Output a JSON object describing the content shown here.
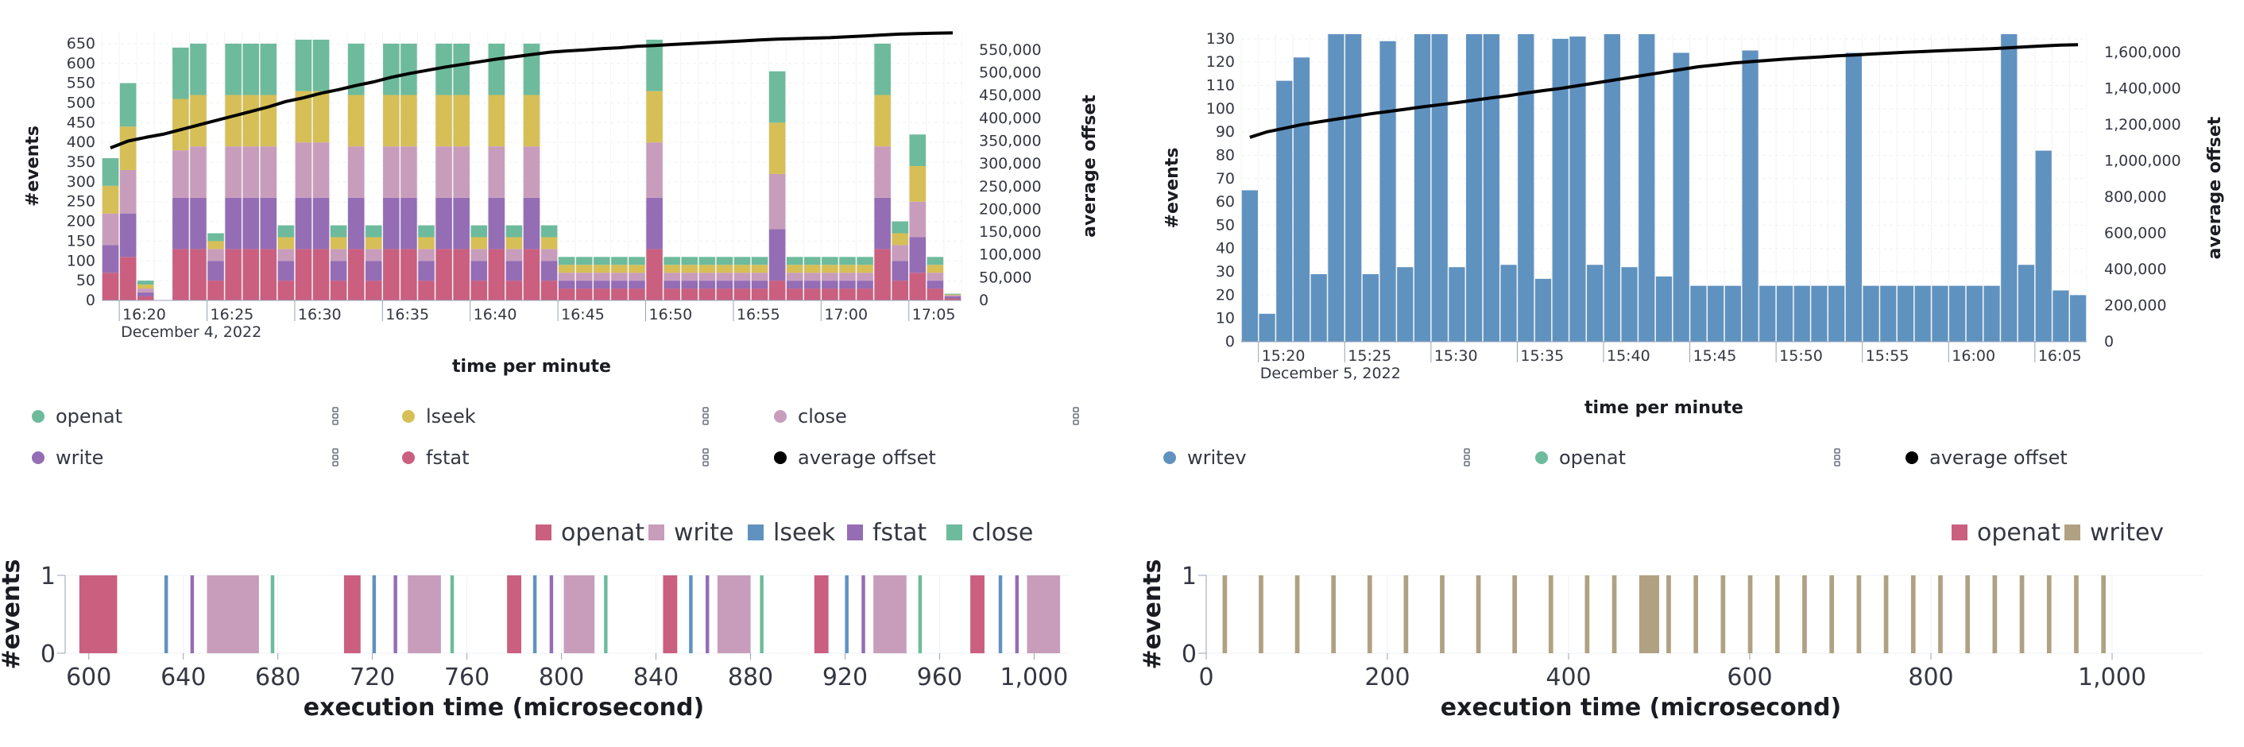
{
  "chart_data": [
    {
      "type": "bar",
      "stacked": true,
      "categories": [
        "16:19",
        "16:20",
        "16:21",
        "16:22",
        "16:23",
        "16:24",
        "16:25",
        "16:26",
        "16:27",
        "16:28",
        "16:29",
        "16:30",
        "16:31",
        "16:32",
        "16:33",
        "16:34",
        "16:35",
        "16:36",
        "16:37",
        "16:38",
        "16:39",
        "16:40",
        "16:41",
        "16:42",
        "16:43",
        "16:44",
        "16:45",
        "16:46",
        "16:47",
        "16:48",
        "16:49",
        "16:50",
        "16:51",
        "16:52",
        "16:53",
        "16:54",
        "16:55",
        "16:56",
        "16:57",
        "16:58",
        "16:59",
        "17:00",
        "17:01",
        "17:02",
        "17:03",
        "17:04",
        "17:05",
        "17:06",
        "17:07"
      ],
      "x_tick_labels": [
        "16:20",
        "16:25",
        "16:30",
        "16:35",
        "16:40",
        "16:45",
        "16:50",
        "16:55",
        "17:00",
        "17:05"
      ],
      "date_label": "December 4, 2022",
      "xlabel": "time per minute",
      "ylabel": "#events",
      "y2label": "average offset",
      "ylim": [
        0,
        680
      ],
      "yticks": [
        0,
        50,
        100,
        150,
        200,
        250,
        300,
        350,
        400,
        450,
        500,
        550,
        600,
        650
      ],
      "y2lim": [
        0,
        590000
      ],
      "y2ticks": [
        "0",
        "50,000",
        "100,000",
        "150,000",
        "200,000",
        "250,000",
        "300,000",
        "350,000",
        "400,000",
        "450,000",
        "500,000",
        "550,000"
      ],
      "series": [
        {
          "name": "fstat",
          "color": "#ca5f80",
          "values": [
            70,
            110,
            10,
            0,
            130,
            130,
            50,
            130,
            130,
            130,
            50,
            130,
            130,
            50,
            130,
            50,
            130,
            130,
            50,
            130,
            130,
            50,
            130,
            50,
            130,
            50,
            30,
            30,
            30,
            30,
            30,
            130,
            30,
            30,
            30,
            30,
            30,
            30,
            50,
            30,
            30,
            30,
            30,
            30,
            130,
            50,
            70,
            30,
            5
          ]
        },
        {
          "name": "write",
          "color": "#946db5",
          "values": [
            70,
            110,
            10,
            0,
            130,
            130,
            50,
            130,
            130,
            130,
            50,
            130,
            130,
            50,
            130,
            50,
            130,
            130,
            50,
            130,
            130,
            50,
            130,
            50,
            130,
            50,
            20,
            20,
            20,
            20,
            20,
            130,
            20,
            20,
            20,
            20,
            20,
            20,
            130,
            20,
            20,
            20,
            20,
            20,
            130,
            50,
            90,
            20,
            5
          ]
        },
        {
          "name": "close",
          "color": "#c89dbb",
          "values": [
            80,
            110,
            10,
            0,
            120,
            130,
            30,
            130,
            130,
            130,
            30,
            140,
            140,
            30,
            130,
            30,
            130,
            130,
            30,
            130,
            130,
            30,
            130,
            30,
            130,
            30,
            20,
            20,
            20,
            20,
            20,
            140,
            20,
            20,
            20,
            20,
            20,
            20,
            140,
            20,
            20,
            20,
            20,
            20,
            130,
            40,
            90,
            20,
            3
          ]
        },
        {
          "name": "lseek",
          "color": "#d6bf57",
          "values": [
            70,
            110,
            10,
            0,
            130,
            130,
            20,
            130,
            130,
            130,
            30,
            130,
            130,
            30,
            130,
            30,
            130,
            130,
            30,
            130,
            130,
            30,
            130,
            30,
            130,
            30,
            20,
            20,
            20,
            20,
            20,
            130,
            20,
            20,
            20,
            20,
            20,
            20,
            130,
            20,
            20,
            20,
            20,
            20,
            130,
            30,
            90,
            20,
            2
          ]
        },
        {
          "name": "openat",
          "color": "#6dbb9c",
          "values": [
            70,
            110,
            10,
            0,
            130,
            130,
            20,
            130,
            130,
            130,
            30,
            130,
            130,
            30,
            130,
            30,
            130,
            130,
            30,
            130,
            130,
            30,
            130,
            30,
            130,
            30,
            20,
            20,
            20,
            20,
            20,
            130,
            20,
            20,
            20,
            20,
            20,
            20,
            130,
            20,
            20,
            20,
            20,
            20,
            130,
            30,
            80,
            20,
            2
          ]
        }
      ],
      "line": {
        "name": "average offset",
        "color": "#000000",
        "values": [
          335000,
          350000,
          358000,
          365000,
          375000,
          385000,
          395000,
          405000,
          415000,
          425000,
          437000,
          445000,
          455000,
          463000,
          472000,
          480000,
          490000,
          498000,
          505000,
          512000,
          518000,
          524000,
          530000,
          535000,
          540000,
          545000,
          548000,
          550000,
          553000,
          555000,
          558000,
          560000,
          562000,
          564000,
          566000,
          568000,
          570000,
          572000,
          574000,
          575000,
          576000,
          577000,
          579000,
          581000,
          583000,
          585000,
          586000,
          587000,
          587500
        ]
      },
      "legend": [
        {
          "name": "openat",
          "color": "#6dbb9c"
        },
        {
          "name": "lseek",
          "color": "#d6bf57"
        },
        {
          "name": "close",
          "color": "#c89dbb"
        },
        {
          "name": "write",
          "color": "#946db5"
        },
        {
          "name": "fstat",
          "color": "#ca5f80"
        },
        {
          "name": "average offset",
          "color": "#000000"
        }
      ]
    },
    {
      "type": "bar",
      "categories": [
        "15:19",
        "15:20",
        "15:21",
        "15:22",
        "15:23",
        "15:24",
        "15:25",
        "15:26",
        "15:27",
        "15:28",
        "15:29",
        "15:30",
        "15:31",
        "15:32",
        "15:33",
        "15:34",
        "15:35",
        "15:36",
        "15:37",
        "15:38",
        "15:39",
        "15:40",
        "15:41",
        "15:42",
        "15:43",
        "15:44",
        "15:45",
        "15:46",
        "15:47",
        "15:48",
        "15:49",
        "15:50",
        "15:51",
        "15:52",
        "15:53",
        "15:54",
        "15:55",
        "15:56",
        "15:57",
        "15:58",
        "15:59",
        "16:00",
        "16:01",
        "16:02",
        "16:03",
        "16:04",
        "16:05",
        "16:06",
        "16:07"
      ],
      "x_tick_labels": [
        "15:20",
        "15:25",
        "15:30",
        "15:35",
        "15:40",
        "15:45",
        "15:50",
        "15:55",
        "16:00",
        "16:05"
      ],
      "date_label": "December 5, 2022",
      "xlabel": "time per minute",
      "ylabel": "#events",
      "y2label": "average offset",
      "ylim": [
        0,
        132
      ],
      "yticks": [
        0,
        10,
        20,
        30,
        40,
        50,
        60,
        70,
        80,
        90,
        100,
        110,
        120,
        130
      ],
      "y2lim": [
        0,
        1700000
      ],
      "y2ticks": [
        "0",
        "200,000",
        "400,000",
        "600,000",
        "800,000",
        "1,000,000",
        "1,200,000",
        "1,400,000",
        "1,600,000"
      ],
      "series": [
        {
          "name": "writev",
          "color": "#6092c0",
          "values": [
            65,
            12,
            112,
            122,
            29,
            132,
            132,
            29,
            129,
            32,
            132,
            132,
            32,
            132,
            132,
            33,
            132,
            27,
            130,
            131,
            33,
            132,
            32,
            132,
            28,
            124,
            24,
            24,
            24,
            125,
            24,
            24,
            24,
            24,
            24,
            124,
            24,
            24,
            24,
            24,
            24,
            24,
            24,
            24,
            133,
            33,
            82,
            22,
            20
          ]
        }
      ],
      "line": {
        "name": "average offset",
        "color": "#000000",
        "values": [
          1130000,
          1160000,
          1180000,
          1200000,
          1215000,
          1230000,
          1245000,
          1260000,
          1272000,
          1285000,
          1298000,
          1310000,
          1322000,
          1335000,
          1348000,
          1360000,
          1375000,
          1388000,
          1400000,
          1415000,
          1430000,
          1445000,
          1460000,
          1475000,
          1490000,
          1505000,
          1520000,
          1530000,
          1540000,
          1548000,
          1555000,
          1562000,
          1568000,
          1574000,
          1580000,
          1585000,
          1590000,
          1595000,
          1600000,
          1604000,
          1608000,
          1612000,
          1616000,
          1620000,
          1625000,
          1630000,
          1635000,
          1640000,
          1642000
        ]
      },
      "legend": [
        {
          "name": "writev",
          "color": "#6092c0"
        },
        {
          "name": "openat",
          "color": "#6dbb9c"
        },
        {
          "name": "average offset",
          "color": "#000000"
        }
      ]
    },
    {
      "type": "timeline",
      "xlabel": "execution time (microsecond)",
      "ylabel": "#events",
      "xlim": [
        590,
        1015
      ],
      "xticks": [
        600,
        640,
        680,
        720,
        760,
        800,
        840,
        880,
        920,
        960,
        1000
      ],
      "xtick_labels": [
        "600",
        "640",
        "680",
        "720",
        "760",
        "800",
        "840",
        "880",
        "920",
        "960",
        "1,000"
      ],
      "ylim": [
        0,
        1
      ],
      "yticks": [
        0,
        1
      ],
      "legend": [
        {
          "name": "openat",
          "color": "#ca5f80"
        },
        {
          "name": "write",
          "color": "#c89dbb"
        },
        {
          "name": "lseek",
          "color": "#6092c0"
        },
        {
          "name": "fstat",
          "color": "#946db5"
        },
        {
          "name": "close",
          "color": "#6dbb9c"
        }
      ],
      "events": [
        {
          "start": 596,
          "end": 612,
          "color": "#ca5f80"
        },
        {
          "start": 632,
          "end": 633.5,
          "color": "#6092c0"
        },
        {
          "start": 643,
          "end": 644.5,
          "color": "#946db5"
        },
        {
          "start": 650,
          "end": 672,
          "color": "#c89dbb"
        },
        {
          "start": 677,
          "end": 678.5,
          "color": "#6dbb9c"
        },
        {
          "start": 708,
          "end": 715,
          "color": "#ca5f80"
        },
        {
          "start": 720,
          "end": 721.5,
          "color": "#6092c0"
        },
        {
          "start": 729,
          "end": 730.5,
          "color": "#946db5"
        },
        {
          "start": 735,
          "end": 749,
          "color": "#c89dbb"
        },
        {
          "start": 753,
          "end": 754.5,
          "color": "#6dbb9c"
        },
        {
          "start": 777,
          "end": 783,
          "color": "#ca5f80"
        },
        {
          "start": 788,
          "end": 789.5,
          "color": "#6092c0"
        },
        {
          "start": 795,
          "end": 796.5,
          "color": "#946db5"
        },
        {
          "start": 801,
          "end": 814,
          "color": "#c89dbb"
        },
        {
          "start": 818,
          "end": 819.5,
          "color": "#6dbb9c"
        },
        {
          "start": 843,
          "end": 849,
          "color": "#ca5f80"
        },
        {
          "start": 854,
          "end": 855.5,
          "color": "#6092c0"
        },
        {
          "start": 861,
          "end": 862.5,
          "color": "#946db5"
        },
        {
          "start": 866,
          "end": 880,
          "color": "#c89dbb"
        },
        {
          "start": 884,
          "end": 885.5,
          "color": "#6dbb9c"
        },
        {
          "start": 907,
          "end": 913,
          "color": "#ca5f80"
        },
        {
          "start": 920,
          "end": 921.5,
          "color": "#6092c0"
        },
        {
          "start": 927,
          "end": 928.5,
          "color": "#946db5"
        },
        {
          "start": 932,
          "end": 946,
          "color": "#c89dbb"
        },
        {
          "start": 951,
          "end": 952.5,
          "color": "#6dbb9c"
        },
        {
          "start": 973,
          "end": 979,
          "color": "#ca5f80"
        },
        {
          "start": 985,
          "end": 986.5,
          "color": "#6092c0"
        },
        {
          "start": 992,
          "end": 993.5,
          "color": "#946db5"
        },
        {
          "start": 997,
          "end": 1011,
          "color": "#c89dbb"
        }
      ]
    },
    {
      "type": "timeline",
      "xlabel": "execution time (microsecond)",
      "ylabel": "#events",
      "xlim": [
        0,
        1100
      ],
      "xticks": [
        0,
        200,
        400,
        600,
        800,
        1000
      ],
      "xtick_labels": [
        "0",
        "200",
        "400",
        "600",
        "800",
        "1,000"
      ],
      "ylim": [
        0,
        1
      ],
      "yticks": [
        0,
        1
      ],
      "legend": [
        {
          "name": "openat",
          "color": "#ca5f80"
        },
        {
          "name": "writev",
          "color": "#b0a183"
        }
      ],
      "events": [
        {
          "start": 18,
          "end": 23,
          "color": "#b0a183"
        },
        {
          "start": 58,
          "end": 63,
          "color": "#b0a183"
        },
        {
          "start": 98,
          "end": 103,
          "color": "#b0a183"
        },
        {
          "start": 138,
          "end": 143,
          "color": "#b0a183"
        },
        {
          "start": 178,
          "end": 183,
          "color": "#b0a183"
        },
        {
          "start": 218,
          "end": 223,
          "color": "#b0a183"
        },
        {
          "start": 258,
          "end": 263,
          "color": "#b0a183"
        },
        {
          "start": 298,
          "end": 303,
          "color": "#b0a183"
        },
        {
          "start": 338,
          "end": 343,
          "color": "#b0a183"
        },
        {
          "start": 378,
          "end": 383,
          "color": "#b0a183"
        },
        {
          "start": 418,
          "end": 423,
          "color": "#b0a183"
        },
        {
          "start": 448,
          "end": 453,
          "color": "#b0a183"
        },
        {
          "start": 478,
          "end": 500,
          "color": "#b0a183"
        },
        {
          "start": 508,
          "end": 513,
          "color": "#b0a183"
        },
        {
          "start": 538,
          "end": 543,
          "color": "#b0a183"
        },
        {
          "start": 568,
          "end": 573,
          "color": "#b0a183"
        },
        {
          "start": 598,
          "end": 603,
          "color": "#b0a183"
        },
        {
          "start": 628,
          "end": 633,
          "color": "#b0a183"
        },
        {
          "start": 658,
          "end": 663,
          "color": "#b0a183"
        },
        {
          "start": 688,
          "end": 693,
          "color": "#b0a183"
        },
        {
          "start": 718,
          "end": 723,
          "color": "#b0a183"
        },
        {
          "start": 748,
          "end": 753,
          "color": "#b0a183"
        },
        {
          "start": 778,
          "end": 783,
          "color": "#b0a183"
        },
        {
          "start": 808,
          "end": 813,
          "color": "#b0a183"
        },
        {
          "start": 838,
          "end": 843,
          "color": "#b0a183"
        },
        {
          "start": 868,
          "end": 873,
          "color": "#b0a183"
        },
        {
          "start": 898,
          "end": 903,
          "color": "#b0a183"
        },
        {
          "start": 928,
          "end": 933,
          "color": "#b0a183"
        },
        {
          "start": 958,
          "end": 963,
          "color": "#b0a183"
        },
        {
          "start": 988,
          "end": 993,
          "color": "#b0a183"
        }
      ]
    }
  ],
  "legend_menu_icon": "vertical-dots-icon"
}
